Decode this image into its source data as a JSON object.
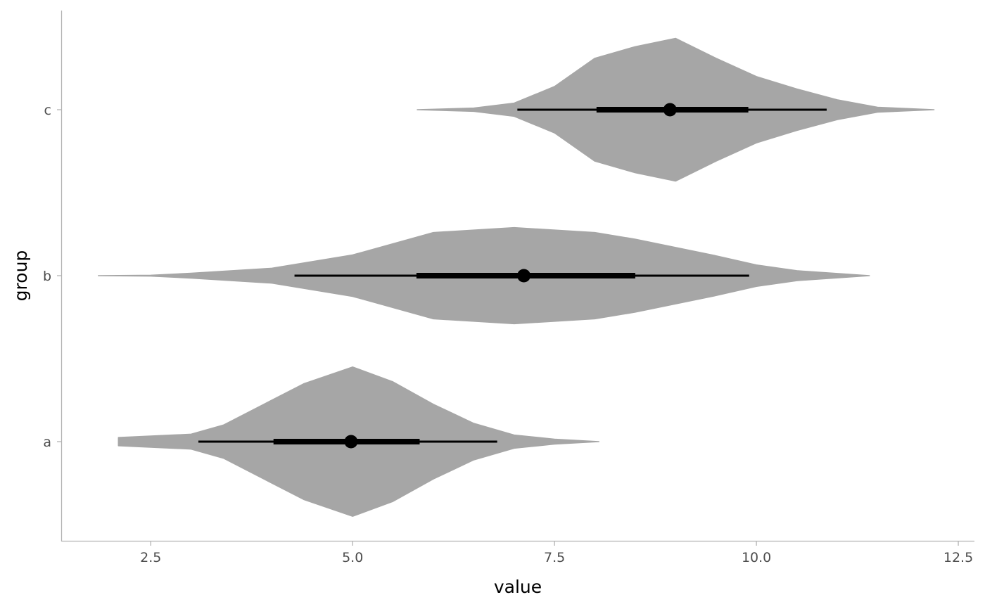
{
  "chart_data": {
    "type": "violin",
    "orientation": "horizontal",
    "xlabel": "value",
    "ylabel": "group",
    "xlim": [
      1.4,
      12.7
    ],
    "x_ticks": [
      2.5,
      5.0,
      7.5,
      10.0,
      12.5
    ],
    "x_tick_labels": [
      "2.5",
      "5.0",
      "7.5",
      "10.0",
      "12.5"
    ],
    "categories": [
      "a",
      "b",
      "c"
    ],
    "grid": false,
    "fill_color": "#a6a6a6",
    "interval_color": "#000000",
    "series": [
      {
        "category": "a",
        "density": [
          [
            2.1,
            0.05
          ],
          [
            3.0,
            0.09
          ],
          [
            3.4,
            0.2
          ],
          [
            3.9,
            0.45
          ],
          [
            4.4,
            0.7
          ],
          [
            5.0,
            0.9
          ],
          [
            5.5,
            0.72
          ],
          [
            6.0,
            0.45
          ],
          [
            6.5,
            0.22
          ],
          [
            7.0,
            0.08
          ],
          [
            7.5,
            0.03
          ],
          [
            8.05,
            0.0
          ]
        ],
        "range": [
          2.1,
          8.05
        ],
        "point_estimate": 4.98,
        "interval_66": [
          4.02,
          5.83
        ],
        "interval_95": [
          3.09,
          6.79
        ]
      },
      {
        "category": "b",
        "density": [
          [
            1.85,
            0.0
          ],
          [
            2.5,
            0.005
          ],
          [
            3.0,
            0.03
          ],
          [
            4.0,
            0.09
          ],
          [
            5.0,
            0.25
          ],
          [
            6.0,
            0.52
          ],
          [
            7.0,
            0.58
          ],
          [
            8.0,
            0.52
          ],
          [
            8.5,
            0.44
          ],
          [
            9.5,
            0.24
          ],
          [
            10.0,
            0.13
          ],
          [
            10.5,
            0.06
          ],
          [
            11.4,
            0.0
          ]
        ],
        "range": [
          1.85,
          11.4
        ],
        "point_estimate": 7.12,
        "interval_66": [
          5.79,
          8.5
        ],
        "interval_95": [
          4.28,
          9.91
        ]
      },
      {
        "category": "c",
        "density": [
          [
            5.8,
            0.0
          ],
          [
            6.5,
            0.02
          ],
          [
            7.0,
            0.08
          ],
          [
            7.5,
            0.28
          ],
          [
            8.0,
            0.62
          ],
          [
            8.5,
            0.76
          ],
          [
            9.0,
            0.86
          ],
          [
            9.5,
            0.62
          ],
          [
            10.0,
            0.4
          ],
          [
            10.5,
            0.25
          ],
          [
            11.0,
            0.12
          ],
          [
            11.5,
            0.03
          ],
          [
            12.2,
            0.0
          ]
        ],
        "range": [
          5.8,
          12.2
        ],
        "point_estimate": 8.93,
        "interval_66": [
          8.02,
          9.9
        ],
        "interval_95": [
          7.04,
          10.87
        ]
      }
    ]
  }
}
